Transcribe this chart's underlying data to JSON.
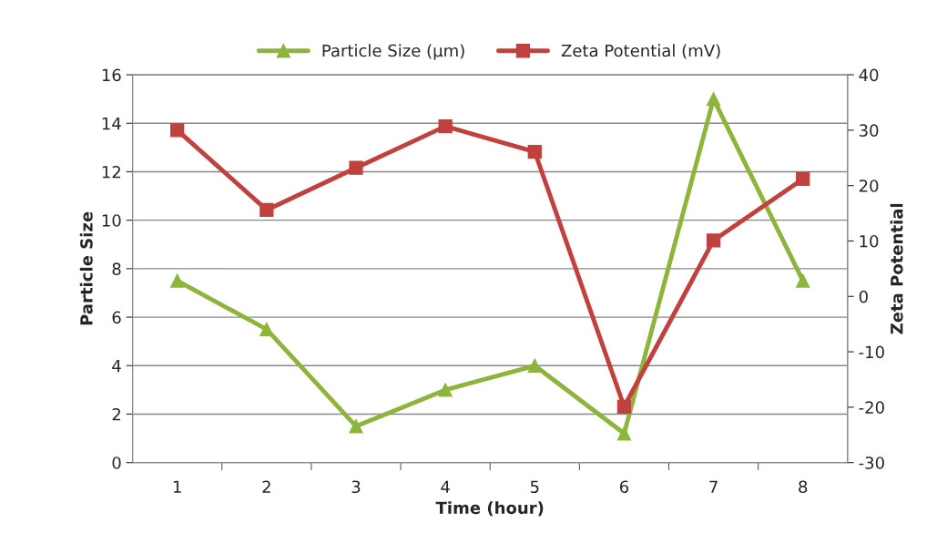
{
  "chart_data": {
    "type": "line",
    "xlabel": "Time (hour)",
    "ylabel": "Particle Size",
    "y2label": "Zeta Potential",
    "categories": [
      "1",
      "2",
      "3",
      "4",
      "5",
      "6",
      "7",
      "8"
    ],
    "series": [
      {
        "name": "Particle Size (µm)",
        "color": "#8db53c",
        "marker": "triangle",
        "values": [
          7.5,
          5.5,
          1.5,
          3,
          4,
          1.2,
          15,
          7.5
        ]
      },
      {
        "name": "Zeta Potential (mV)",
        "color": "#c0413e",
        "marker": "square",
        "axis": "y2",
        "values": [
          30,
          15.6,
          23.2,
          30.7,
          26.1,
          -19.9,
          10.1,
          21.2
        ]
      }
    ],
    "ylim": [
      0,
      16
    ],
    "yticks": [
      0,
      2,
      4,
      6,
      8,
      10,
      12,
      14,
      16
    ],
    "y2lim": [
      -30,
      40
    ],
    "y2ticks": [
      -30,
      -20,
      -10,
      0,
      10,
      20,
      30,
      40
    ],
    "grid": "y",
    "legend": "top"
  }
}
